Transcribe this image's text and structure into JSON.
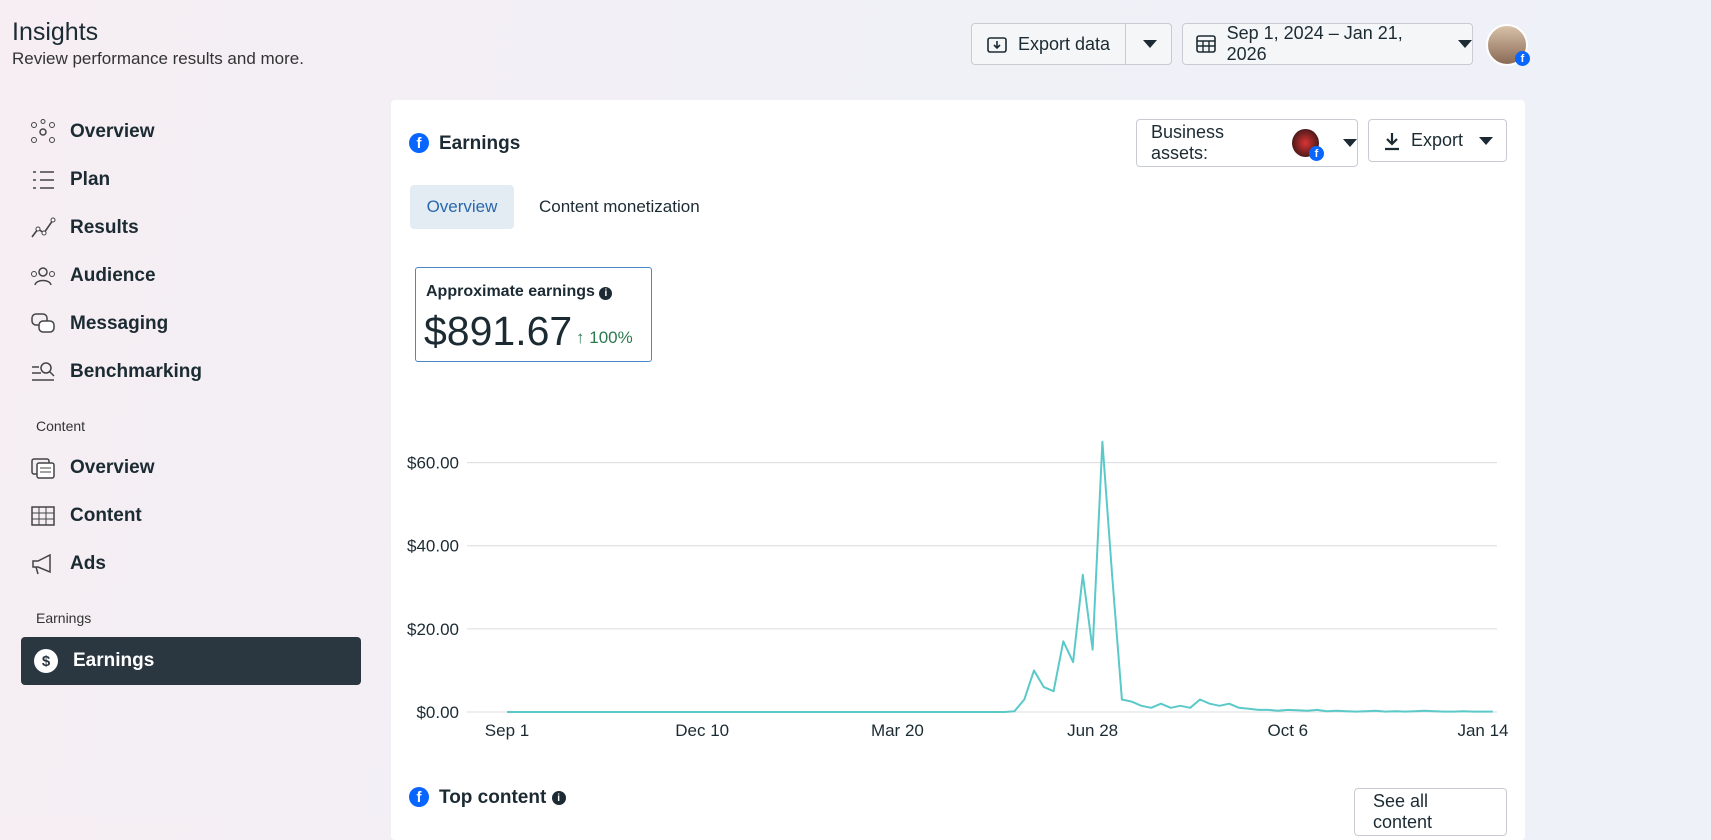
{
  "header": {
    "title": "Insights",
    "subtitle": "Review performance results and more.",
    "export_data": "Export data",
    "date_range": "Sep 1, 2024 – Jan 21, 2026"
  },
  "sidebar": {
    "items": [
      "Overview",
      "Plan",
      "Results",
      "Audience",
      "Messaging",
      "Benchmarking"
    ],
    "content_section": "Content",
    "content_items": [
      "Overview",
      "Content",
      "Ads"
    ],
    "earnings_section": "Earnings",
    "earnings_items": [
      "Earnings"
    ]
  },
  "card": {
    "title": "Earnings",
    "business_assets": "Business assets:",
    "export": "Export",
    "tabs": [
      "Overview",
      "Content monetization"
    ],
    "metric": {
      "label": "Approximate earnings",
      "value": "$891.67",
      "change": "100%"
    }
  },
  "chart_data": {
    "type": "line",
    "color": "#5cc9c9",
    "grid": true,
    "categories": [
      "Sep 1",
      null,
      null,
      null,
      null,
      null,
      null,
      null,
      null,
      null,
      null,
      null,
      null,
      null,
      null,
      null,
      null,
      null,
      null,
      null,
      "Dec 10",
      null,
      null,
      null,
      null,
      null,
      null,
      null,
      null,
      null,
      null,
      null,
      null,
      null,
      null,
      null,
      null,
      null,
      null,
      null,
      "Mar 20",
      null,
      null,
      null,
      null,
      null,
      null,
      null,
      null,
      null,
      null,
      null,
      null,
      null,
      null,
      null,
      null,
      null,
      null,
      null,
      "Jun 28",
      null,
      null,
      null,
      null,
      null,
      null,
      null,
      null,
      null,
      null,
      null,
      null,
      null,
      null,
      null,
      null,
      null,
      null,
      null,
      "Oct 6",
      null,
      null,
      null,
      null,
      null,
      null,
      null,
      null,
      null,
      null,
      null,
      null,
      null,
      null,
      null,
      null,
      null,
      null,
      null,
      "Jan 14",
      null
    ],
    "values": [
      0,
      0,
      0,
      0,
      0,
      0,
      0,
      0,
      0,
      0,
      0,
      0,
      0,
      0,
      0,
      0,
      0,
      0,
      0,
      0,
      0,
      0,
      0,
      0,
      0,
      0,
      0,
      0,
      0,
      0,
      0,
      0,
      0,
      0,
      0,
      0,
      0,
      0,
      0,
      0,
      0,
      0,
      0,
      0,
      0,
      0,
      0,
      0,
      0,
      0,
      0,
      0,
      0.2,
      3,
      10,
      6,
      5,
      17,
      12,
      33,
      15,
      65,
      33,
      3,
      2.5,
      1.5,
      1,
      2,
      1,
      1.5,
      1,
      3,
      2,
      1.5,
      2,
      1,
      0.8,
      0.5,
      0.5,
      0.3,
      0.5,
      0.4,
      0.3,
      0.5,
      0.2,
      0.3,
      0.2,
      0.1,
      0.2,
      0.3,
      0.1,
      0.2,
      0.1,
      0.2,
      0.3,
      0.2,
      0.1,
      0.1,
      0.2,
      0.1,
      0.1,
      0.1
    ],
    "ylim": [
      0,
      70
    ],
    "yticks": [
      {
        "value": 0,
        "label": "$0.00"
      },
      {
        "value": 20,
        "label": "$20.00"
      },
      {
        "value": 40,
        "label": "$40.00"
      },
      {
        "value": 60,
        "label": "$60.00"
      }
    ]
  },
  "top_content": {
    "title": "Top content",
    "button": "See all content"
  }
}
